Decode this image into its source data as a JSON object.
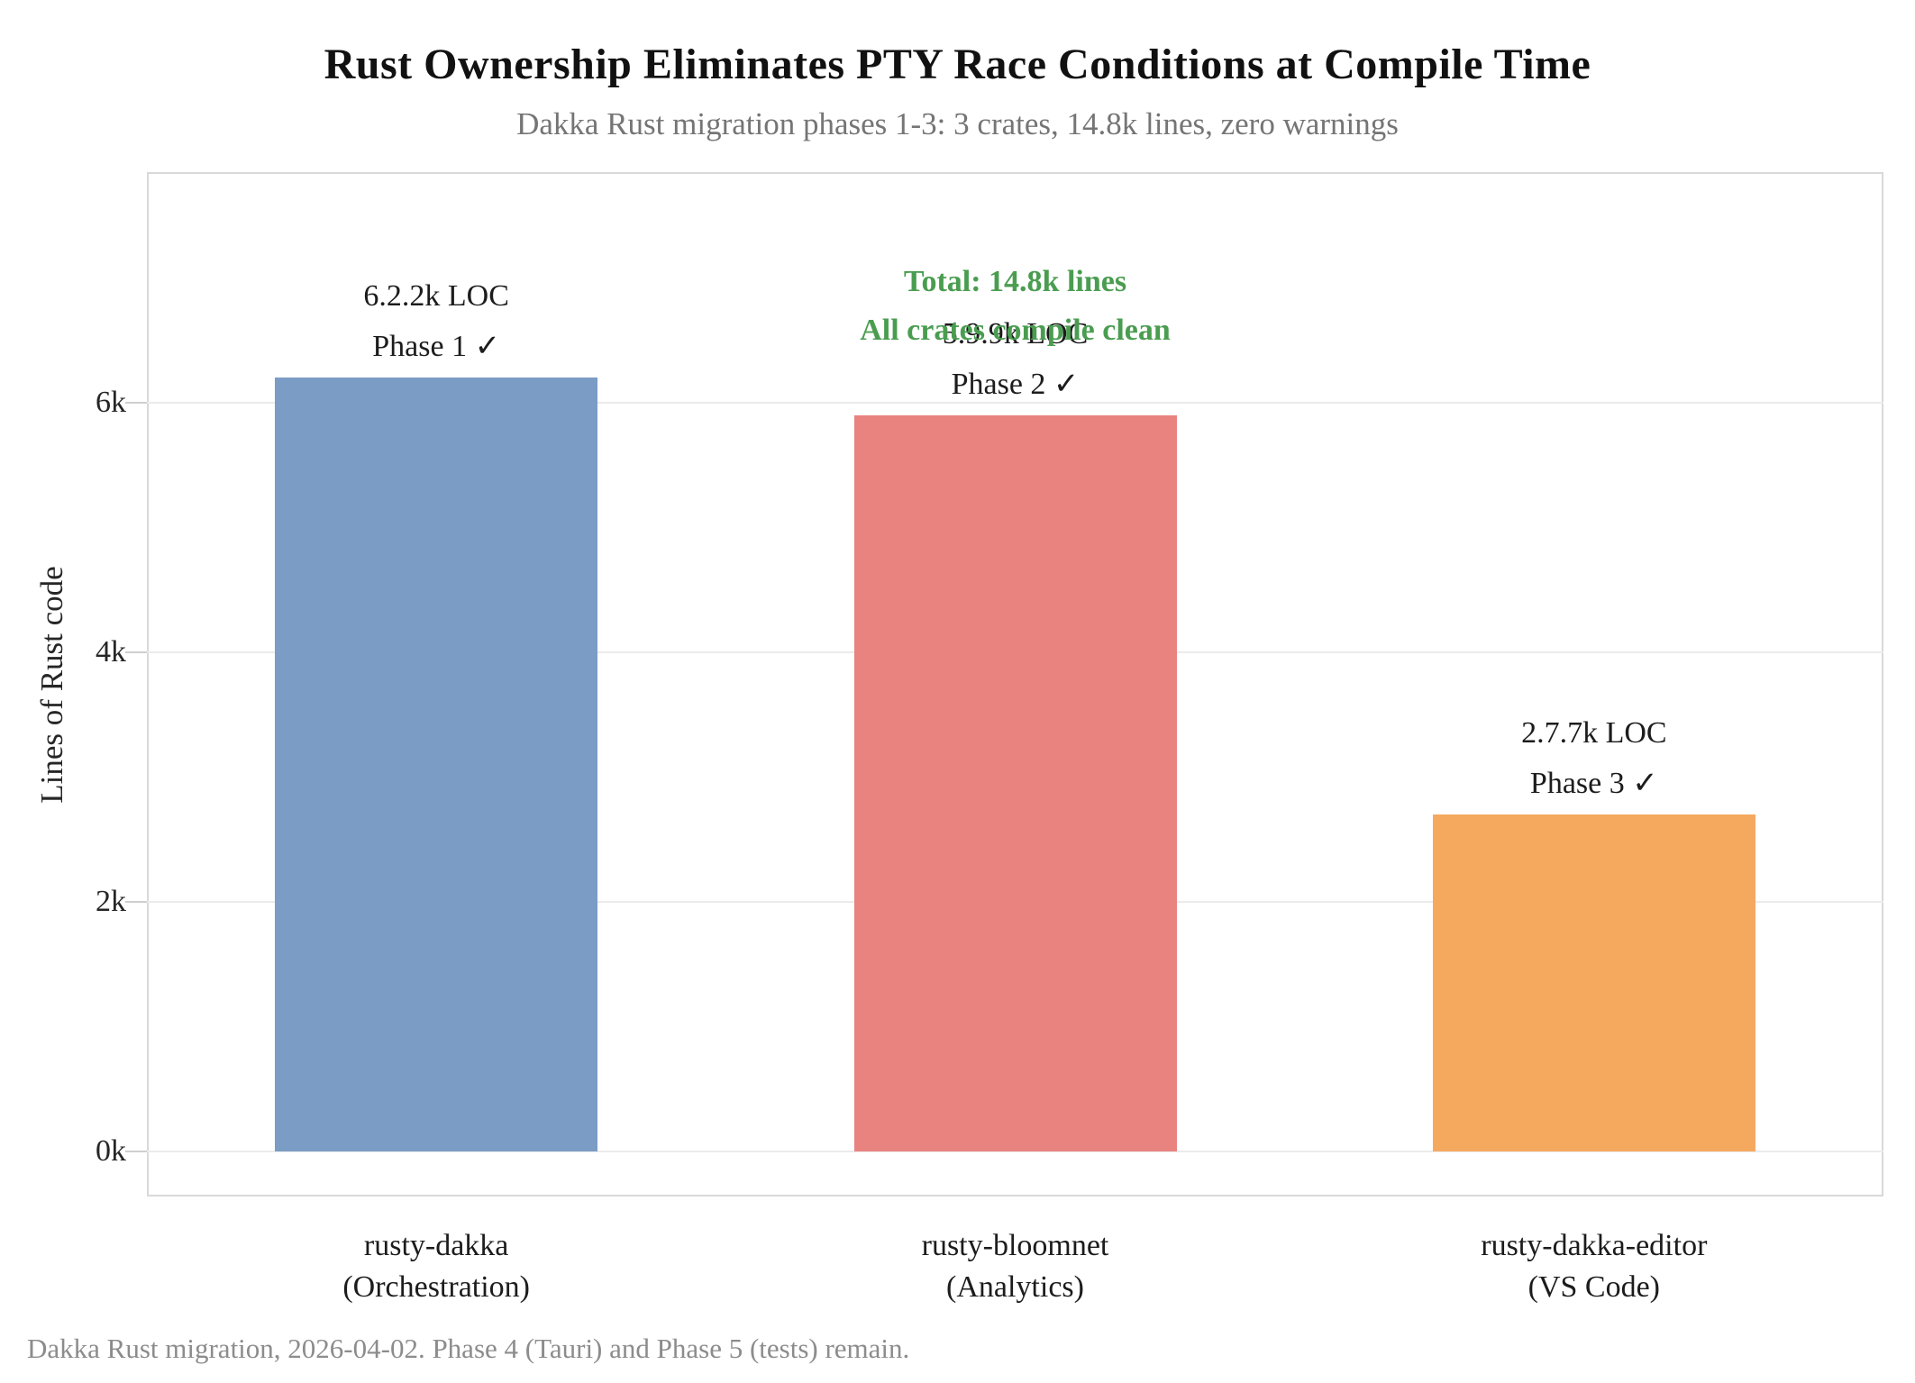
{
  "header": {
    "title": "Rust Ownership Eliminates PTY Race Conditions at Compile Time",
    "subtitle": "Dakka Rust migration phases 1-3: 3 crates, 14.8k lines, zero warnings"
  },
  "footer": {
    "note": "Dakka Rust migration, 2026-04-02. Phase 4 (Tauri) and Phase 5 (tests) remain."
  },
  "chart_data": {
    "type": "bar",
    "title": "Rust Ownership Eliminates PTY Race Conditions at Compile Time",
    "subtitle": "Dakka Rust migration phases 1-3: 3 crates, 14.8k lines, zero warnings",
    "categories": [
      "rusty-dakka\n(Orchestration)",
      "rusty-bloomnet\n(Analytics)",
      "rusty-dakka-editor\n(VS Code)"
    ],
    "values": [
      6200,
      5900,
      2700
    ],
    "bar_colors": [
      "#7b9cc4",
      "#e88380",
      "#f5a95f"
    ],
    "bar_labels": [
      "6.2.2k LOC\nPhase 1 ✓",
      "5.9.9k LOC\nPhase 2 ✓",
      "2.7.7k LOC\nPhase 3 ✓"
    ],
    "xlabel": "",
    "ylabel": "Lines of Rust code",
    "ylim": [
      0,
      7850
    ],
    "yticks": {
      "values": [
        0,
        2000,
        4000,
        6000
      ],
      "labels": [
        "0k",
        "2k",
        "4k",
        "6k"
      ]
    },
    "grid": true,
    "legend": "none",
    "annotation": {
      "text": "Total: 14.8k lines\nAll crates compile clean",
      "color": "#4a9d50"
    }
  }
}
